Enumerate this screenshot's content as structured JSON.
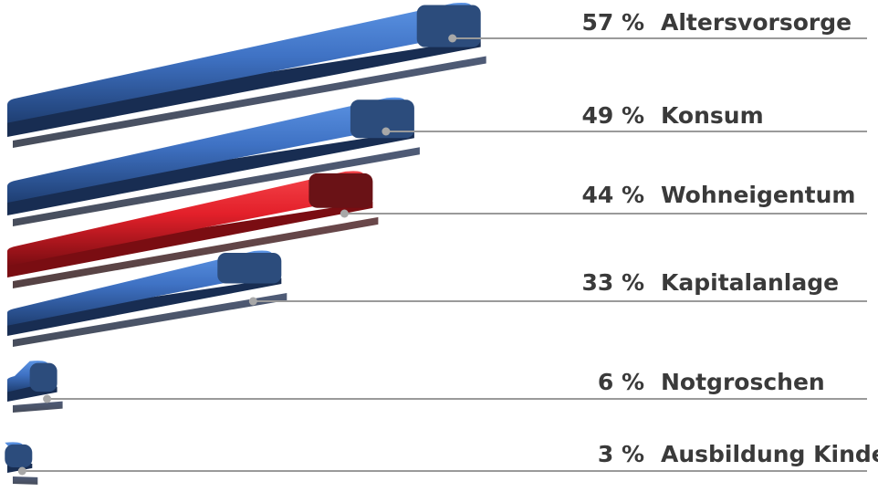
{
  "chart_data": {
    "type": "bar",
    "orientation": "horizontal",
    "style": "3d",
    "categories": [
      "Altersvorsorge",
      "Konsum",
      "Wohneigentum",
      "Kapitalanlage",
      "Notgroschen",
      "Ausbildung Kinder"
    ],
    "values": [
      57,
      49,
      44,
      33,
      6,
      3
    ],
    "value_labels": [
      "57 %",
      "49 %",
      "44 %",
      "33 %",
      "6 %",
      "3 %"
    ],
    "highlight_category": "Wohneigentum",
    "title": "",
    "xlabel": "",
    "ylabel": "",
    "xlim": [
      0,
      60
    ],
    "grid": false,
    "legend": "none",
    "colors": {
      "bar_front_light": "#4f85d6",
      "bar_front_dark": "#1f3f73",
      "bar_shadow": "#0d1830",
      "bar_cap": "#2c4c7c",
      "highlight_front_light": "#ee2a31",
      "highlight_front_dark": "#7a0d12",
      "highlight_shadow": "#2a0508",
      "highlight_cap": "#6a1216",
      "leader_line": "#9a9a9a",
      "text": "#3a3a3a"
    }
  }
}
